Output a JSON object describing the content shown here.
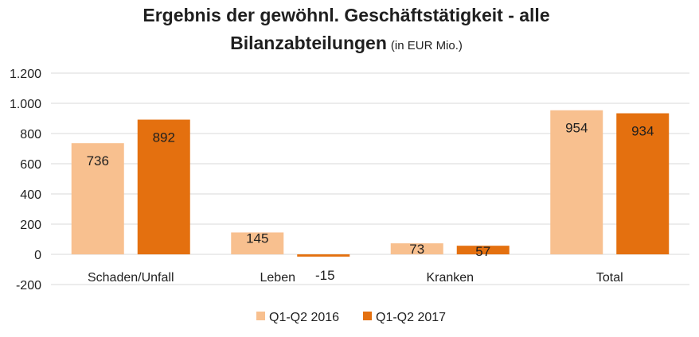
{
  "chart_data": {
    "type": "bar",
    "title_line1": "Ergebnis der gewöhnl. Geschäftstätigkeit - alle",
    "title_line2": "Bilanzabteilungen",
    "subtitle": "(in EUR Mio.)",
    "categories": [
      "Schaden/Unfall",
      "Leben",
      "Kranken",
      "Total"
    ],
    "series": [
      {
        "name": "Q1-Q2 2016",
        "color": "#f8c08f",
        "values": [
          736,
          145,
          73,
          954
        ]
      },
      {
        "name": "Q1-Q2 2017",
        "color": "#e4700f",
        "values": [
          892,
          -15,
          57,
          934
        ]
      }
    ],
    "ylim": [
      -200,
      1200
    ],
    "yticks": [
      -200,
      0,
      200,
      400,
      600,
      800,
      1000,
      1200
    ],
    "ytick_labels": [
      "-200",
      "0",
      "200",
      "400",
      "600",
      "800",
      "1.000",
      "1.200"
    ],
    "data_labels": [
      [
        "736",
        "145",
        "73",
        "954"
      ],
      [
        "892",
        "-15",
        "57",
        "934"
      ]
    ],
    "grid": true,
    "legend_position": "bottom"
  }
}
